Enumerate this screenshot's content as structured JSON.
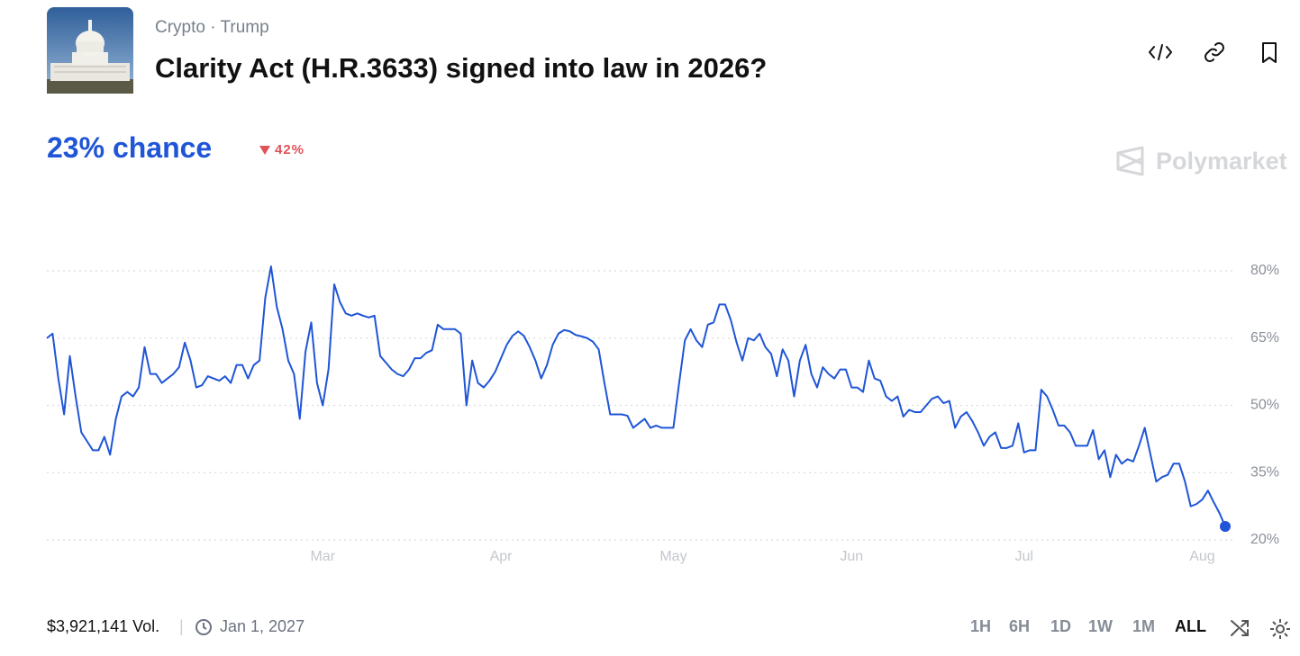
{
  "header": {
    "breadcrumb": [
      "Crypto",
      "Trump"
    ],
    "title": "Clarity Act (H.R.3633) signed into law in 2026?"
  },
  "chance": "23% chance",
  "change": "42%",
  "brand": "Polymarket",
  "footer": {
    "volume": "$3,921,141 Vol.",
    "end_date": "Jan 1, 2027",
    "ranges": [
      "1H",
      "6H",
      "1D",
      "1W",
      "1M",
      "ALL"
    ],
    "active_range": 5
  },
  "chart_data": {
    "type": "line",
    "categories": [
      null,
      null,
      null,
      null,
      null,
      null,
      null,
      null,
      null,
      null,
      null,
      null,
      null,
      null,
      null,
      null,
      null,
      null,
      null,
      null,
      null,
      null,
      null,
      null,
      null,
      null,
      null,
      null,
      null,
      null,
      null,
      null,
      null,
      null,
      null,
      null,
      null,
      null,
      null,
      null,
      null,
      null,
      null,
      null,
      null,
      null,
      null,
      null,
      "Mar",
      null,
      null,
      null,
      null,
      null,
      null,
      null,
      null,
      null,
      null,
      null,
      null,
      null,
      null,
      null,
      null,
      null,
      null,
      null,
      null,
      null,
      null,
      null,
      null,
      null,
      null,
      null,
      null,
      null,
      null,
      "Apr",
      null,
      null,
      null,
      null,
      null,
      null,
      null,
      null,
      null,
      null,
      null,
      null,
      null,
      null,
      null,
      null,
      null,
      null,
      null,
      null,
      null,
      null,
      null,
      null,
      null,
      null,
      null,
      null,
      null,
      "May",
      null,
      null,
      null,
      null,
      null,
      null,
      null,
      null,
      null,
      null,
      null,
      null,
      null,
      null,
      null,
      null,
      null,
      null,
      null,
      null,
      null,
      null,
      null,
      null,
      null,
      null,
      null,
      null,
      null,
      null,
      "Jun",
      null,
      null,
      null,
      null,
      null,
      null,
      null,
      null,
      null,
      null,
      null,
      null,
      null,
      null,
      null,
      null,
      null,
      null,
      null,
      null,
      null,
      null,
      null,
      null,
      null,
      null,
      null,
      null,
      null,
      "Jul",
      null,
      null,
      null,
      null,
      null,
      null,
      null,
      null,
      null,
      null,
      null,
      null,
      null,
      null,
      null,
      null,
      null,
      null,
      null,
      null,
      null,
      null,
      null,
      null,
      null,
      null,
      null,
      null,
      null,
      null,
      "Aug",
      null,
      null,
      null,
      null
    ],
    "series": [
      {
        "color": "#1f55d6",
        "values": [
          65,
          66,
          56,
          48,
          61,
          52,
          44,
          42,
          40,
          40,
          43,
          39,
          47,
          52,
          53,
          52,
          54,
          63,
          57,
          57,
          55,
          56,
          57,
          58.5,
          64,
          60,
          54,
          54.5,
          56.5,
          56,
          55.5,
          56.5,
          55,
          59,
          59,
          56,
          59,
          60,
          74,
          81,
          72,
          67,
          60,
          57,
          47,
          62,
          68.5,
          55,
          50,
          58,
          77,
          73,
          70.5,
          70,
          70.5,
          70,
          69.6,
          70,
          61,
          59.5,
          58,
          57,
          56.5,
          58,
          60.5,
          60.5,
          61.7,
          62.3,
          68,
          67,
          67,
          67,
          66,
          50,
          60,
          55,
          54,
          55.5,
          57.5,
          60.5,
          63.5,
          65.5,
          66.5,
          65.5,
          63,
          60,
          56,
          59,
          63.5,
          66,
          66.8,
          66.5,
          65.7,
          65.4,
          65,
          64.2,
          62.5,
          55,
          48,
          48,
          48,
          47.7,
          45,
          46,
          47,
          45,
          45.5,
          45,
          45,
          45,
          55,
          64.5,
          67,
          64.5,
          63,
          68,
          68.5,
          72.5,
          72.5,
          69,
          64,
          60,
          65,
          64.5,
          66,
          63,
          61.5,
          56.5,
          62.5,
          60,
          52,
          60,
          63.5,
          57,
          54,
          58.5,
          57,
          56,
          58,
          58,
          54,
          54,
          53,
          60,
          56,
          55.5,
          52,
          51,
          52,
          47.5,
          49,
          48.5,
          48.5,
          50,
          51.5,
          52,
          50.5,
          51,
          45,
          47.5,
          48.5,
          46.5,
          44,
          41,
          43,
          44,
          40.5,
          40.5,
          41,
          46,
          39.5,
          40,
          40,
          53.5,
          52,
          49,
          45.5,
          45.5,
          44,
          41,
          41,
          41,
          44.5,
          38,
          40,
          34,
          39,
          37,
          38,
          37.5,
          41,
          45,
          39,
          33,
          34,
          34.5,
          37,
          37,
          33,
          27.5,
          28,
          29,
          31,
          28.4,
          26,
          23
        ]
      }
    ],
    "ylim": [
      20,
      80
    ],
    "yticks": [
      {
        "value": 20,
        "label": "20%"
      },
      {
        "value": 35,
        "label": "35%"
      },
      {
        "value": 50,
        "label": "50%"
      },
      {
        "value": 65,
        "label": "65%"
      },
      {
        "value": 80,
        "label": "80%"
      }
    ],
    "grid": true
  }
}
